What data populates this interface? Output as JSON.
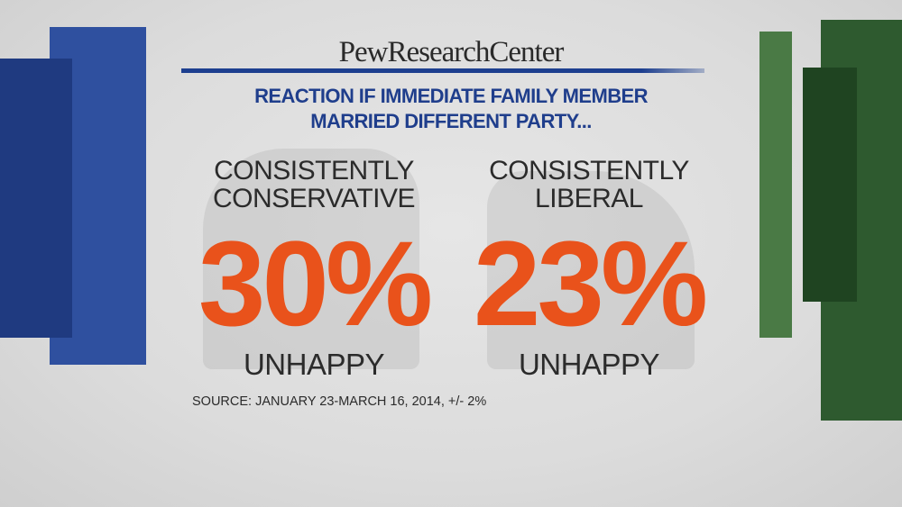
{
  "brand": {
    "logo": "PewResearchCenter"
  },
  "headline": {
    "line1": "REACTION IF IMMEDIATE FAMILY MEMBER",
    "line2": "MARRIED DIFFERENT PARTY..."
  },
  "stats": [
    {
      "label_line1": "CONSISTENTLY",
      "label_line2": "CONSERVATIVE",
      "value": "30%",
      "caption": "UNHAPPY"
    },
    {
      "label_line1": "CONSISTENTLY",
      "label_line2": "LIBERAL",
      "value": "23%",
      "caption": "UNHAPPY"
    }
  ],
  "source": "SOURCE: JANUARY 23-MARCH 16, 2014, +/- 2%",
  "colors": {
    "blue": "#2c4f9e",
    "green": "#3c6a3a",
    "orange": "#e9521b",
    "headline": "#1f3e8c"
  }
}
